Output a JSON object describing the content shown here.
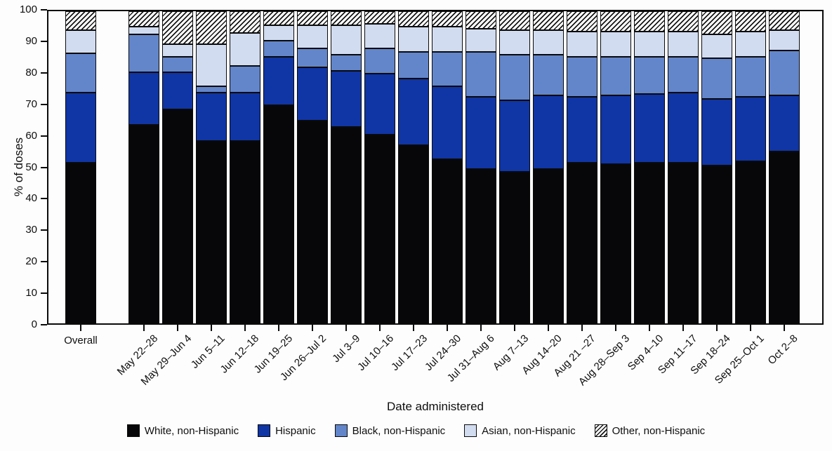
{
  "chart_data": {
    "type": "bar",
    "stacked": true,
    "orientation": "vertical",
    "title": "",
    "xlabel": "Date administered",
    "ylabel": "% of doses",
    "ylim": [
      0,
      100
    ],
    "yticks": [
      0,
      10,
      20,
      30,
      40,
      50,
      60,
      70,
      80,
      90,
      100
    ],
    "grid": false,
    "legend_position": "bottom",
    "categories": [
      "Overall",
      "May 22–28",
      "May 29–Jun 4",
      "Jun 5–11",
      "Jun 12–18",
      "Jun 19–25",
      "Jun 26–Jul 2",
      "Jul 3–9",
      "Jul 10–16",
      "Jul 17–23",
      "Jul 24–30",
      "Jul 31–Aug 6",
      "Aug 7–13",
      "Aug 14–20",
      "Aug 21 –27",
      "Aug 28–Sep 3",
      "Sep 4–10",
      "Sep 11–17",
      "Sep 18–24",
      "Sep 25–Oct 1",
      "Oct 2–8"
    ],
    "series": [
      {
        "name": "White, non-Hispanic",
        "color": "#070709",
        "pattern": "solid",
        "values": [
          51.5,
          63.5,
          68.5,
          58.5,
          58.5,
          70,
          65,
          63,
          60.5,
          57,
          52.5,
          49.5,
          48.5,
          49.5,
          51.5,
          51,
          51.5,
          51.5,
          50.5,
          52,
          55
        ]
      },
      {
        "name": "Hispanic",
        "color": "#1035a5",
        "pattern": "solid",
        "values": [
          22.5,
          17,
          12,
          15.5,
          15.5,
          15.5,
          17,
          18,
          19.5,
          21.5,
          23.5,
          23,
          23,
          23.5,
          21,
          22,
          22,
          22.5,
          21.5,
          20.5,
          18
        ]
      },
      {
        "name": "Black, non-Hispanic",
        "color": "#6386cb",
        "pattern": "solid",
        "values": [
          12.5,
          12,
          5,
          2,
          8.5,
          5,
          6,
          5,
          8,
          8.5,
          11,
          14.5,
          14.5,
          13,
          13,
          12.5,
          12,
          11.5,
          13,
          13,
          14.5
        ]
      },
      {
        "name": "Asian, non-Hispanic",
        "color": "#d2dcf0",
        "pattern": "solid",
        "values": [
          7.5,
          2.5,
          4,
          13.5,
          10.5,
          5,
          7.5,
          9.5,
          8,
          8,
          8,
          7.5,
          8,
          8,
          8,
          8,
          8,
          8,
          7.5,
          8,
          6.5
        ]
      },
      {
        "name": "Other, non-Hispanic",
        "color": "#ffffff",
        "pattern": "diagonal-hatch",
        "values": [
          6,
          5,
          10.5,
          10.5,
          7,
          4.5,
          4.5,
          4.5,
          4,
          5,
          5,
          5.5,
          6,
          6,
          6.5,
          6.5,
          6.5,
          6.5,
          7.5,
          6.5,
          6
        ]
      }
    ]
  }
}
